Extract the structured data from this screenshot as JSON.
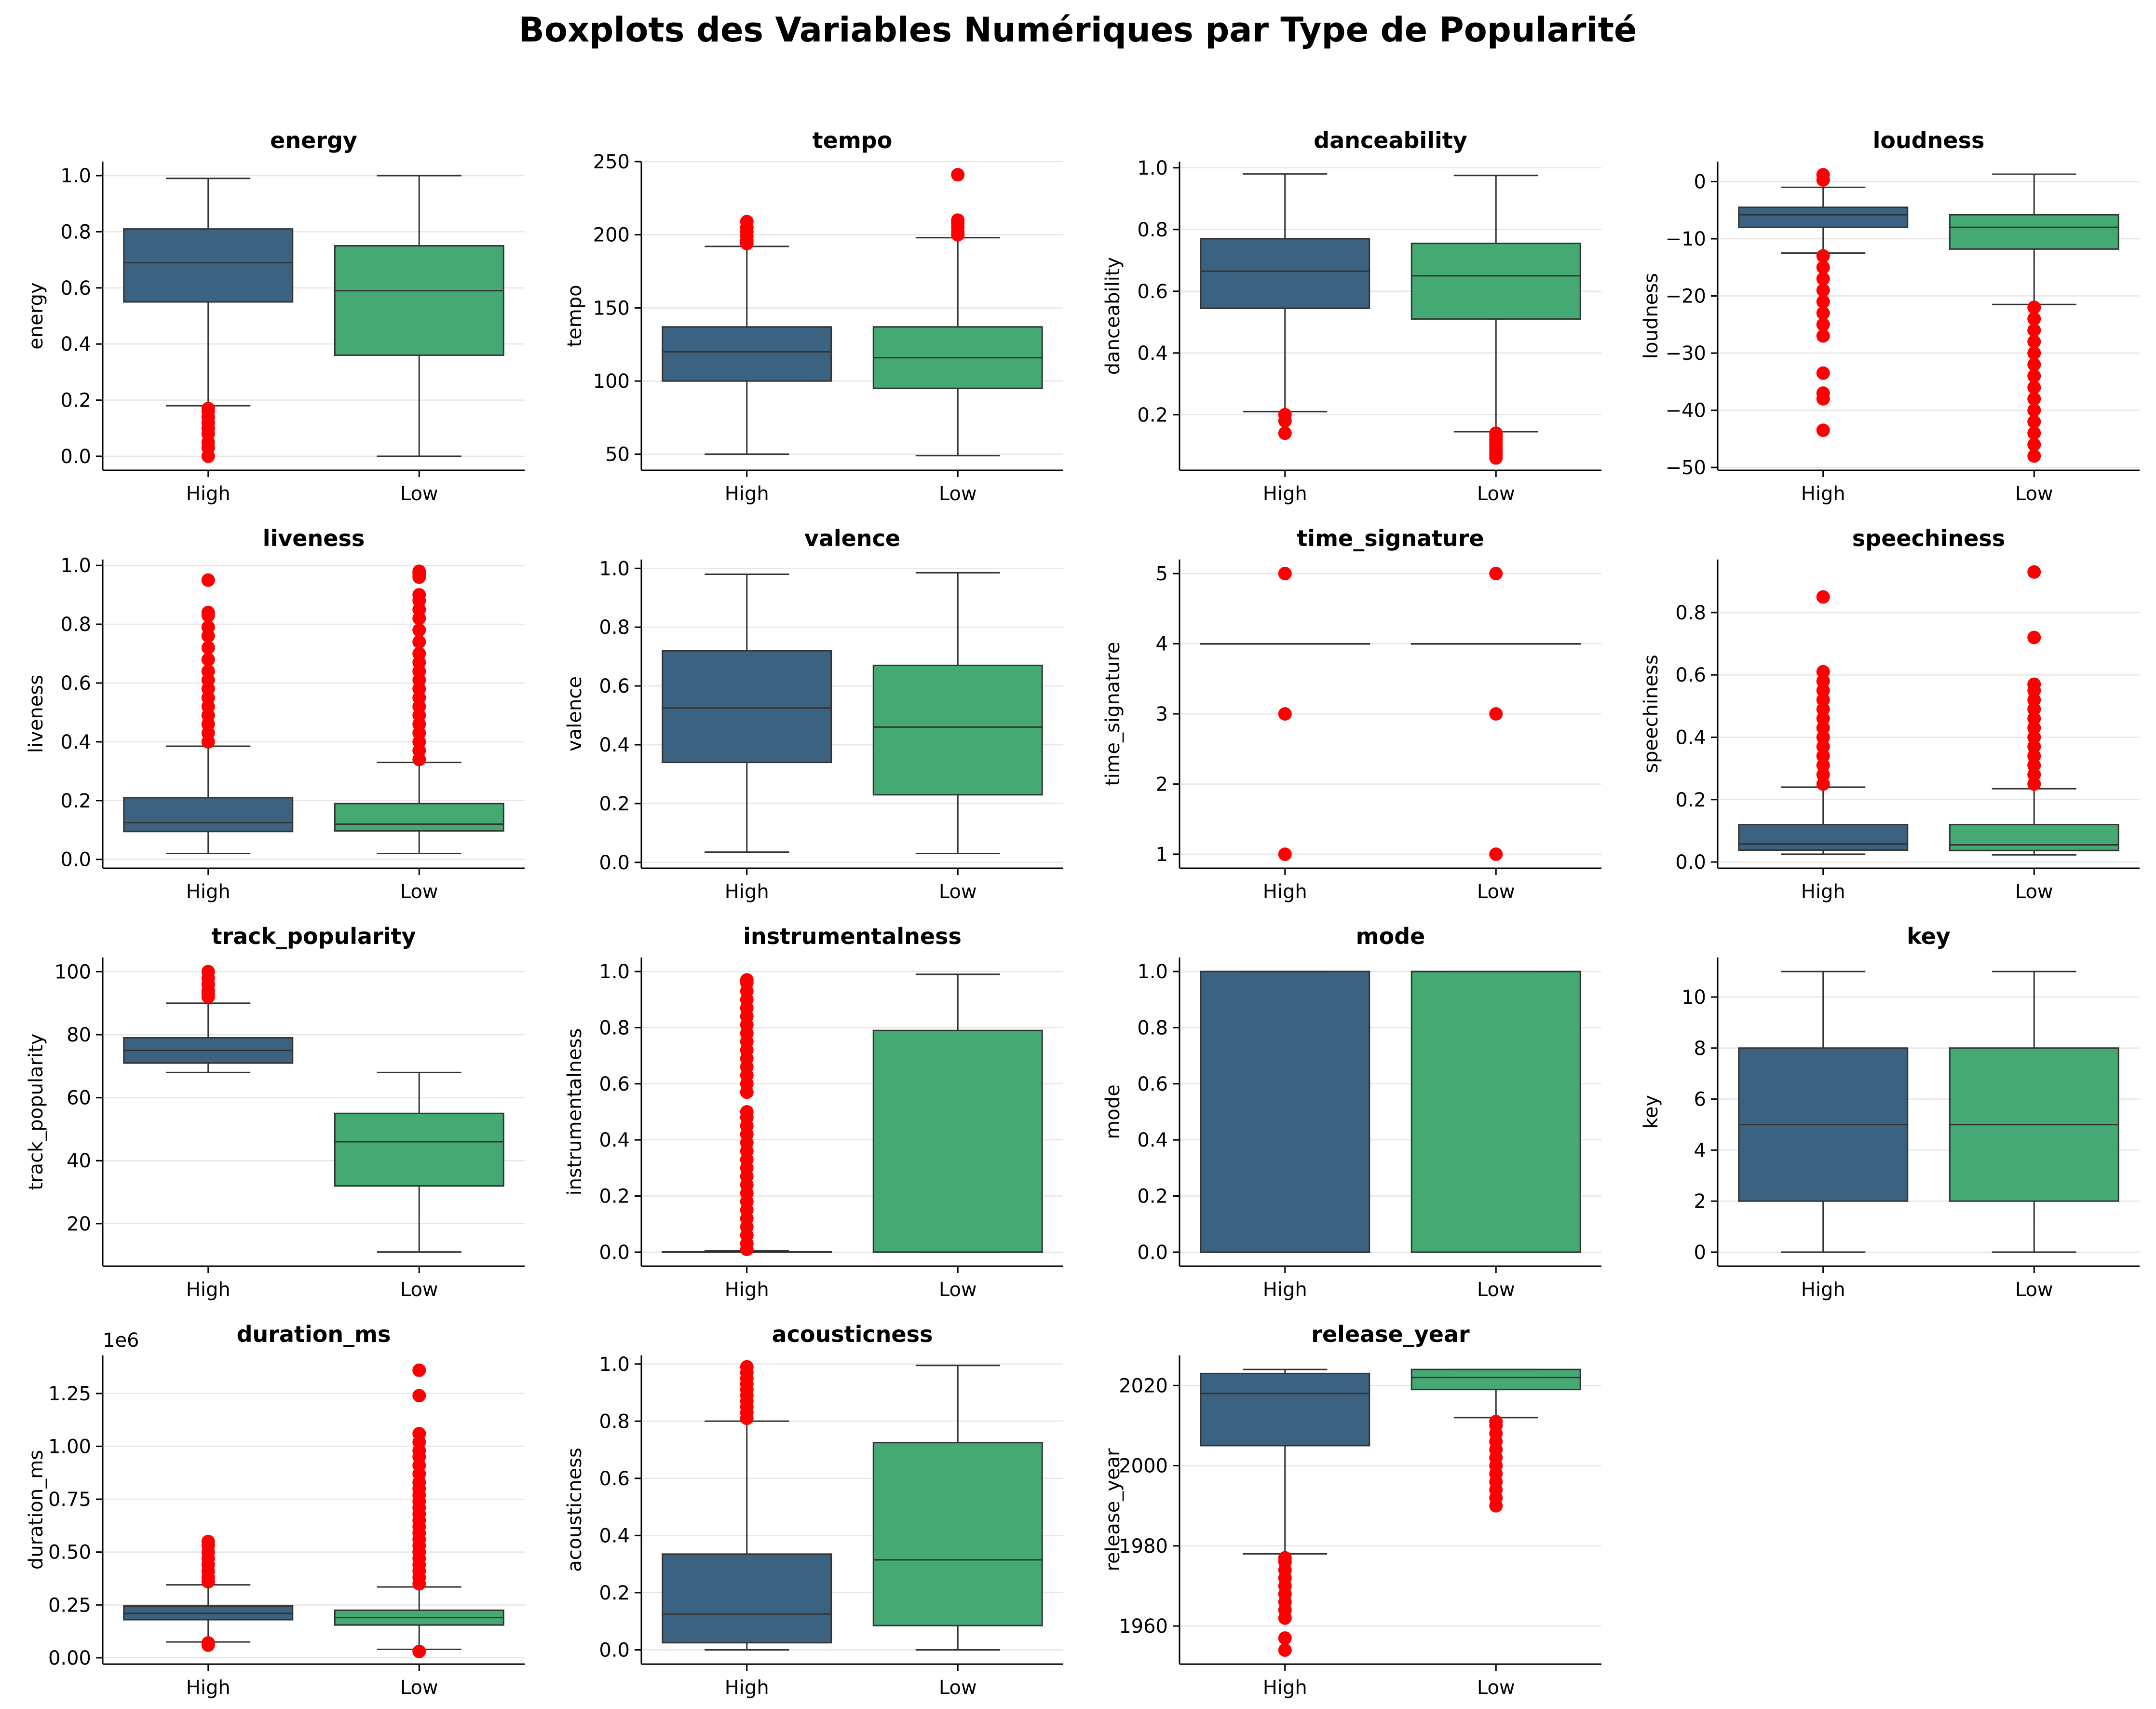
{
  "figure": {
    "title": "Boxplots des Variables Numériques par Type de Popularité",
    "colors": {
      "High": "#3b6381",
      "Low": "#45a974",
      "outlier": "#ff0000",
      "line": "#333333",
      "grid": "#e6e6e6"
    }
  },
  "chart_data": [
    {
      "type": "boxplot",
      "title": "energy",
      "ylabel": "energy",
      "categories": [
        "High",
        "Low"
      ],
      "ylim": [
        -0.05,
        1.05
      ],
      "yticks": [
        0.0,
        0.2,
        0.4,
        0.6,
        0.8,
        1.0
      ],
      "tick_decimals": 1,
      "boxes": [
        {
          "category": "High",
          "whisker_low": 0.18,
          "q1": 0.55,
          "median": 0.69,
          "q3": 0.81,
          "whisker_high": 0.99,
          "outliers": [
            0.0,
            0.03,
            0.05,
            0.08,
            0.1,
            0.12,
            0.14,
            0.16,
            0.17
          ]
        },
        {
          "category": "Low",
          "whisker_low": 0.0,
          "q1": 0.36,
          "median": 0.59,
          "q3": 0.75,
          "whisker_high": 1.0,
          "outliers": []
        }
      ]
    },
    {
      "type": "boxplot",
      "title": "tempo",
      "ylabel": "tempo",
      "categories": [
        "High",
        "Low"
      ],
      "ylim": [
        39,
        250
      ],
      "yticks": [
        50,
        100,
        150,
        200,
        250
      ],
      "tick_decimals": 0,
      "boxes": [
        {
          "category": "High",
          "whisker_low": 50,
          "q1": 100,
          "median": 120,
          "q3": 137,
          "whisker_high": 192,
          "outliers": [
            194,
            196,
            199,
            202,
            205,
            209
          ]
        },
        {
          "category": "Low",
          "whisker_low": 49,
          "q1": 95,
          "median": 116,
          "q3": 137,
          "whisker_high": 198,
          "outliers": [
            200,
            202,
            205,
            208,
            210,
            241
          ]
        }
      ]
    },
    {
      "type": "boxplot",
      "title": "danceability",
      "ylabel": "danceability",
      "categories": [
        "High",
        "Low"
      ],
      "ylim": [
        0.02,
        1.02
      ],
      "yticks": [
        0.2,
        0.4,
        0.6,
        0.8,
        1.0
      ],
      "tick_decimals": 1,
      "boxes": [
        {
          "category": "High",
          "whisker_low": 0.21,
          "q1": 0.545,
          "median": 0.665,
          "q3": 0.77,
          "whisker_high": 0.98,
          "outliers": [
            0.14,
            0.18,
            0.2
          ]
        },
        {
          "category": "Low",
          "whisker_low": 0.145,
          "q1": 0.51,
          "median": 0.65,
          "q3": 0.755,
          "whisker_high": 0.975,
          "outliers": [
            0.06,
            0.07,
            0.08,
            0.09,
            0.1,
            0.11,
            0.12,
            0.13,
            0.14
          ]
        }
      ]
    },
    {
      "type": "boxplot",
      "title": "loudness",
      "ylabel": "loudness",
      "categories": [
        "High",
        "Low"
      ],
      "ylim": [
        -50.5,
        3.5
      ],
      "yticks": [
        -50,
        -40,
        -30,
        -20,
        -10,
        0
      ],
      "tick_decimals": 0,
      "boxes": [
        {
          "category": "High",
          "whisker_low": -12.5,
          "q1": -8.0,
          "median": -5.8,
          "q3": -4.5,
          "whisker_high": -1.0,
          "outliers": [
            -43.5,
            -38,
            -37,
            -33.5,
            -27,
            -25,
            -23,
            -21,
            -19,
            -17,
            -15,
            -13,
            0.3,
            1.2
          ]
        },
        {
          "category": "Low",
          "whisker_low": -21.5,
          "q1": -11.8,
          "median": -8.0,
          "q3": -5.8,
          "whisker_high": 1.3,
          "outliers": [
            -48,
            -46,
            -44,
            -42,
            -40,
            -38,
            -36,
            -34,
            -32,
            -30,
            -28,
            -26,
            -24,
            -22
          ]
        }
      ]
    },
    {
      "type": "boxplot",
      "title": "liveness",
      "ylabel": "liveness",
      "categories": [
        "High",
        "Low"
      ],
      "ylim": [
        -0.03,
        1.02
      ],
      "yticks": [
        0.0,
        0.2,
        0.4,
        0.6,
        0.8,
        1.0
      ],
      "tick_decimals": 1,
      "boxes": [
        {
          "category": "High",
          "whisker_low": 0.02,
          "q1": 0.095,
          "median": 0.125,
          "q3": 0.21,
          "whisker_high": 0.385,
          "outliers": [
            0.4,
            0.43,
            0.46,
            0.49,
            0.52,
            0.55,
            0.58,
            0.61,
            0.64,
            0.68,
            0.72,
            0.76,
            0.79,
            0.83,
            0.84,
            0.95
          ]
        },
        {
          "category": "Low",
          "whisker_low": 0.02,
          "q1": 0.097,
          "median": 0.12,
          "q3": 0.19,
          "whisker_high": 0.33,
          "outliers": [
            0.34,
            0.37,
            0.4,
            0.43,
            0.46,
            0.49,
            0.52,
            0.55,
            0.58,
            0.61,
            0.64,
            0.67,
            0.7,
            0.74,
            0.78,
            0.82,
            0.85,
            0.88,
            0.9,
            0.96,
            0.97,
            0.98
          ]
        }
      ]
    },
    {
      "type": "boxplot",
      "title": "valence",
      "ylabel": "valence",
      "categories": [
        "High",
        "Low"
      ],
      "ylim": [
        -0.02,
        1.03
      ],
      "yticks": [
        0.0,
        0.2,
        0.4,
        0.6,
        0.8,
        1.0
      ],
      "tick_decimals": 1,
      "boxes": [
        {
          "category": "High",
          "whisker_low": 0.035,
          "q1": 0.34,
          "median": 0.525,
          "q3": 0.72,
          "whisker_high": 0.98,
          "outliers": []
        },
        {
          "category": "Low",
          "whisker_low": 0.03,
          "q1": 0.23,
          "median": 0.46,
          "q3": 0.67,
          "whisker_high": 0.985,
          "outliers": []
        }
      ]
    },
    {
      "type": "boxplot",
      "title": "time_signature",
      "ylabel": "time_signature",
      "categories": [
        "High",
        "Low"
      ],
      "ylim": [
        0.8,
        5.2
      ],
      "yticks": [
        1,
        2,
        3,
        4,
        5
      ],
      "tick_decimals": 0,
      "boxes": [
        {
          "category": "High",
          "whisker_low": 4,
          "q1": 4,
          "median": 4,
          "q3": 4,
          "whisker_high": 4,
          "outliers": [
            1,
            3,
            5
          ]
        },
        {
          "category": "Low",
          "whisker_low": 4,
          "q1": 4,
          "median": 4,
          "q3": 4,
          "whisker_high": 4,
          "outliers": [
            1,
            3,
            5
          ]
        }
      ]
    },
    {
      "type": "boxplot",
      "title": "speechiness",
      "ylabel": "speechiness",
      "categories": [
        "High",
        "Low"
      ],
      "ylim": [
        -0.02,
        0.97
      ],
      "yticks": [
        0.0,
        0.2,
        0.4,
        0.6,
        0.8
      ],
      "tick_decimals": 1,
      "boxes": [
        {
          "category": "High",
          "whisker_low": 0.025,
          "q1": 0.038,
          "median": 0.058,
          "q3": 0.12,
          "whisker_high": 0.24,
          "outliers": [
            0.25,
            0.28,
            0.31,
            0.34,
            0.37,
            0.4,
            0.43,
            0.46,
            0.49,
            0.52,
            0.55,
            0.58,
            0.61,
            0.85
          ]
        },
        {
          "category": "Low",
          "whisker_low": 0.023,
          "q1": 0.037,
          "median": 0.055,
          "q3": 0.12,
          "whisker_high": 0.235,
          "outliers": [
            0.25,
            0.28,
            0.31,
            0.34,
            0.37,
            0.4,
            0.43,
            0.46,
            0.49,
            0.52,
            0.55,
            0.57,
            0.72,
            0.93
          ]
        }
      ]
    },
    {
      "type": "boxplot",
      "title": "track_popularity",
      "ylabel": "track_popularity",
      "categories": [
        "High",
        "Low"
      ],
      "ylim": [
        6.5,
        104.5
      ],
      "yticks": [
        20,
        40,
        60,
        80,
        100
      ],
      "tick_decimals": 0,
      "boxes": [
        {
          "category": "High",
          "whisker_low": 68,
          "q1": 71,
          "median": 75,
          "q3": 79,
          "whisker_high": 90,
          "outliers": [
            92,
            93,
            94,
            96,
            98,
            100
          ]
        },
        {
          "category": "Low",
          "whisker_low": 11,
          "q1": 32,
          "median": 46,
          "q3": 55,
          "whisker_high": 68,
          "outliers": []
        }
      ]
    },
    {
      "type": "boxplot",
      "title": "instrumentalness",
      "ylabel": "instrumentalness",
      "categories": [
        "High",
        "Low"
      ],
      "ylim": [
        -0.05,
        1.05
      ],
      "yticks": [
        0.0,
        0.2,
        0.4,
        0.6,
        0.8,
        1.0
      ],
      "tick_decimals": 1,
      "boxes": [
        {
          "category": "High",
          "whisker_low": 0.0,
          "q1": 0.0,
          "median": 0.0,
          "q3": 0.002,
          "whisker_high": 0.005,
          "outliers": [
            0.01,
            0.03,
            0.06,
            0.09,
            0.12,
            0.15,
            0.18,
            0.21,
            0.24,
            0.27,
            0.3,
            0.33,
            0.36,
            0.39,
            0.42,
            0.45,
            0.48,
            0.5,
            0.57,
            0.6,
            0.63,
            0.66,
            0.69,
            0.72,
            0.75,
            0.78,
            0.81,
            0.84,
            0.87,
            0.9,
            0.93,
            0.96,
            0.97
          ]
        },
        {
          "category": "Low",
          "whisker_low": 0.0,
          "q1": 0.0,
          "median": 0.0,
          "q3": 0.79,
          "whisker_high": 0.99,
          "outliers": []
        }
      ]
    },
    {
      "type": "boxplot",
      "title": "mode",
      "ylabel": "mode",
      "categories": [
        "High",
        "Low"
      ],
      "ylim": [
        -0.05,
        1.05
      ],
      "yticks": [
        0.0,
        0.2,
        0.4,
        0.6,
        0.8,
        1.0
      ],
      "tick_decimals": 1,
      "boxes": [
        {
          "category": "High",
          "whisker_low": 0.0,
          "q1": 0.0,
          "median": 1.0,
          "q3": 1.0,
          "whisker_high": 1.0,
          "outliers": []
        },
        {
          "category": "Low",
          "whisker_low": 0.0,
          "q1": 0.0,
          "median": 1.0,
          "q3": 1.0,
          "whisker_high": 1.0,
          "outliers": []
        }
      ]
    },
    {
      "type": "boxplot",
      "title": "key",
      "ylabel": "key",
      "categories": [
        "High",
        "Low"
      ],
      "ylim": [
        -0.55,
        11.55
      ],
      "yticks": [
        0,
        2,
        4,
        6,
        8,
        10
      ],
      "tick_decimals": 0,
      "boxes": [
        {
          "category": "High",
          "whisker_low": 0,
          "q1": 2,
          "median": 5,
          "q3": 8,
          "whisker_high": 11,
          "outliers": []
        },
        {
          "category": "Low",
          "whisker_low": 0,
          "q1": 2,
          "median": 5,
          "q3": 8,
          "whisker_high": 11,
          "outliers": []
        }
      ]
    },
    {
      "type": "boxplot",
      "title": "duration_ms",
      "ylabel": "duration_ms",
      "offset_label": "1e6",
      "categories": [
        "High",
        "Low"
      ],
      "ylim": [
        -0.03,
        1.43
      ],
      "yticks": [
        0.0,
        0.25,
        0.5,
        0.75,
        1.0,
        1.25
      ],
      "tick_decimals": 2,
      "boxes": [
        {
          "category": "High",
          "whisker_low": 0.075,
          "q1": 0.18,
          "median": 0.21,
          "q3": 0.245,
          "whisker_high": 0.345,
          "outliers": [
            0.06,
            0.07,
            0.36,
            0.38,
            0.41,
            0.44,
            0.47,
            0.5,
            0.53,
            0.55
          ]
        },
        {
          "category": "Low",
          "whisker_low": 0.04,
          "q1": 0.155,
          "median": 0.19,
          "q3": 0.225,
          "whisker_high": 0.335,
          "outliers": [
            0.03,
            0.35,
            0.38,
            0.41,
            0.44,
            0.47,
            0.5,
            0.53,
            0.56,
            0.59,
            0.62,
            0.65,
            0.68,
            0.71,
            0.74,
            0.77,
            0.8,
            0.83,
            0.87,
            0.91,
            0.95,
            0.98,
            1.02,
            1.06,
            1.24,
            1.36
          ]
        }
      ]
    },
    {
      "type": "boxplot",
      "title": "acousticness",
      "ylabel": "acousticness",
      "categories": [
        "High",
        "Low"
      ],
      "ylim": [
        -0.05,
        1.03
      ],
      "yticks": [
        0.0,
        0.2,
        0.4,
        0.6,
        0.8,
        1.0
      ],
      "tick_decimals": 1,
      "boxes": [
        {
          "category": "High",
          "whisker_low": 0.0,
          "q1": 0.025,
          "median": 0.125,
          "q3": 0.335,
          "whisker_high": 0.8,
          "outliers": [
            0.81,
            0.83,
            0.85,
            0.87,
            0.89,
            0.91,
            0.93,
            0.95,
            0.97,
            0.99
          ]
        },
        {
          "category": "Low",
          "whisker_low": 0.0,
          "q1": 0.085,
          "median": 0.315,
          "q3": 0.725,
          "whisker_high": 0.995,
          "outliers": []
        }
      ]
    },
    {
      "type": "boxplot",
      "title": "release_year",
      "ylabel": "release_year",
      "categories": [
        "High",
        "Low"
      ],
      "ylim": [
        1950.5,
        2027.5
      ],
      "yticks": [
        1960,
        1980,
        2000,
        2020
      ],
      "tick_decimals": 0,
      "boxes": [
        {
          "category": "High",
          "whisker_low": 1978,
          "q1": 2005,
          "median": 2018,
          "q3": 2023,
          "whisker_high": 2024,
          "outliers": [
            1954,
            1957,
            1962,
            1964,
            1966,
            1968,
            1970,
            1972,
            1974,
            1976,
            1977
          ]
        },
        {
          "category": "Low",
          "whisker_low": 2012,
          "q1": 2019,
          "median": 2022,
          "q3": 2024,
          "whisker_high": 2024,
          "outliers": [
            1990,
            1992,
            1994,
            1996,
            1998,
            2000,
            2002,
            2004,
            2006,
            2008,
            2010,
            2011
          ]
        }
      ]
    }
  ]
}
